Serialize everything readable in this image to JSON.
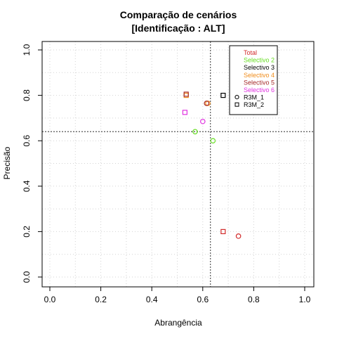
{
  "chart_data": {
    "type": "scatter",
    "title": "Comparação de cenários",
    "subtitle": "[Identificação : ALT]",
    "xlabel": "Abrangência",
    "ylabel": "Precisão",
    "xlim": [
      0,
      1
    ],
    "ylim": [
      0,
      1
    ],
    "x_ticks": [
      "0.0",
      "0.2",
      "0.4",
      "0.6",
      "0.8",
      "1.0"
    ],
    "y_ticks": [
      "0.0",
      "0.2",
      "0.4",
      "0.6",
      "0.8",
      "1.0"
    ],
    "grid": true,
    "reference_lines": {
      "vertical_x": 0.63,
      "horizontal_y": 0.64
    },
    "legend": {
      "position": "top-right",
      "entries": [
        {
          "label": "Total",
          "color": "#d22b2b"
        },
        {
          "label": "Selectivo 2",
          "color": "#66dd22"
        },
        {
          "label": "Selectivo 3",
          "color": "#000000"
        },
        {
          "label": "Selectivo 4",
          "color": "#f08c1a"
        },
        {
          "label": "Selectivo 5",
          "color": "#a52a2a"
        },
        {
          "label": "Selectivo 6",
          "color": "#e033e0"
        }
      ],
      "markers": [
        {
          "label": "R3M_1",
          "shape": "circle"
        },
        {
          "label": "R3M_2",
          "shape": "square"
        }
      ]
    },
    "series": [
      {
        "name": "Total",
        "color": "#d22b2b",
        "points": [
          {
            "x": 0.74,
            "y": 0.18,
            "marker": "circle"
          },
          {
            "x": 0.68,
            "y": 0.2,
            "marker": "square"
          }
        ]
      },
      {
        "name": "Selectivo 2",
        "color": "#66dd22",
        "points": [
          {
            "x": 0.57,
            "y": 0.64,
            "marker": "circle"
          },
          {
            "x": 0.64,
            "y": 0.6,
            "marker": "circle"
          }
        ]
      },
      {
        "name": "Selectivo 3",
        "color": "#000000",
        "points": [
          {
            "x": 0.68,
            "y": 0.8,
            "marker": "square"
          }
        ]
      },
      {
        "name": "Selectivo 4",
        "color": "#f08c1a",
        "points": [
          {
            "x": 0.62,
            "y": 0.765,
            "marker": "circle"
          },
          {
            "x": 0.535,
            "y": 0.8,
            "marker": "square"
          }
        ]
      },
      {
        "name": "Selectivo 5",
        "color": "#a52a2a",
        "points": [
          {
            "x": 0.615,
            "y": 0.765,
            "marker": "circle"
          },
          {
            "x": 0.535,
            "y": 0.805,
            "marker": "square"
          }
        ]
      },
      {
        "name": "Selectivo 6",
        "color": "#e033e0",
        "points": [
          {
            "x": 0.6,
            "y": 0.685,
            "marker": "circle"
          },
          {
            "x": 0.53,
            "y": 0.725,
            "marker": "square"
          }
        ]
      }
    ]
  }
}
